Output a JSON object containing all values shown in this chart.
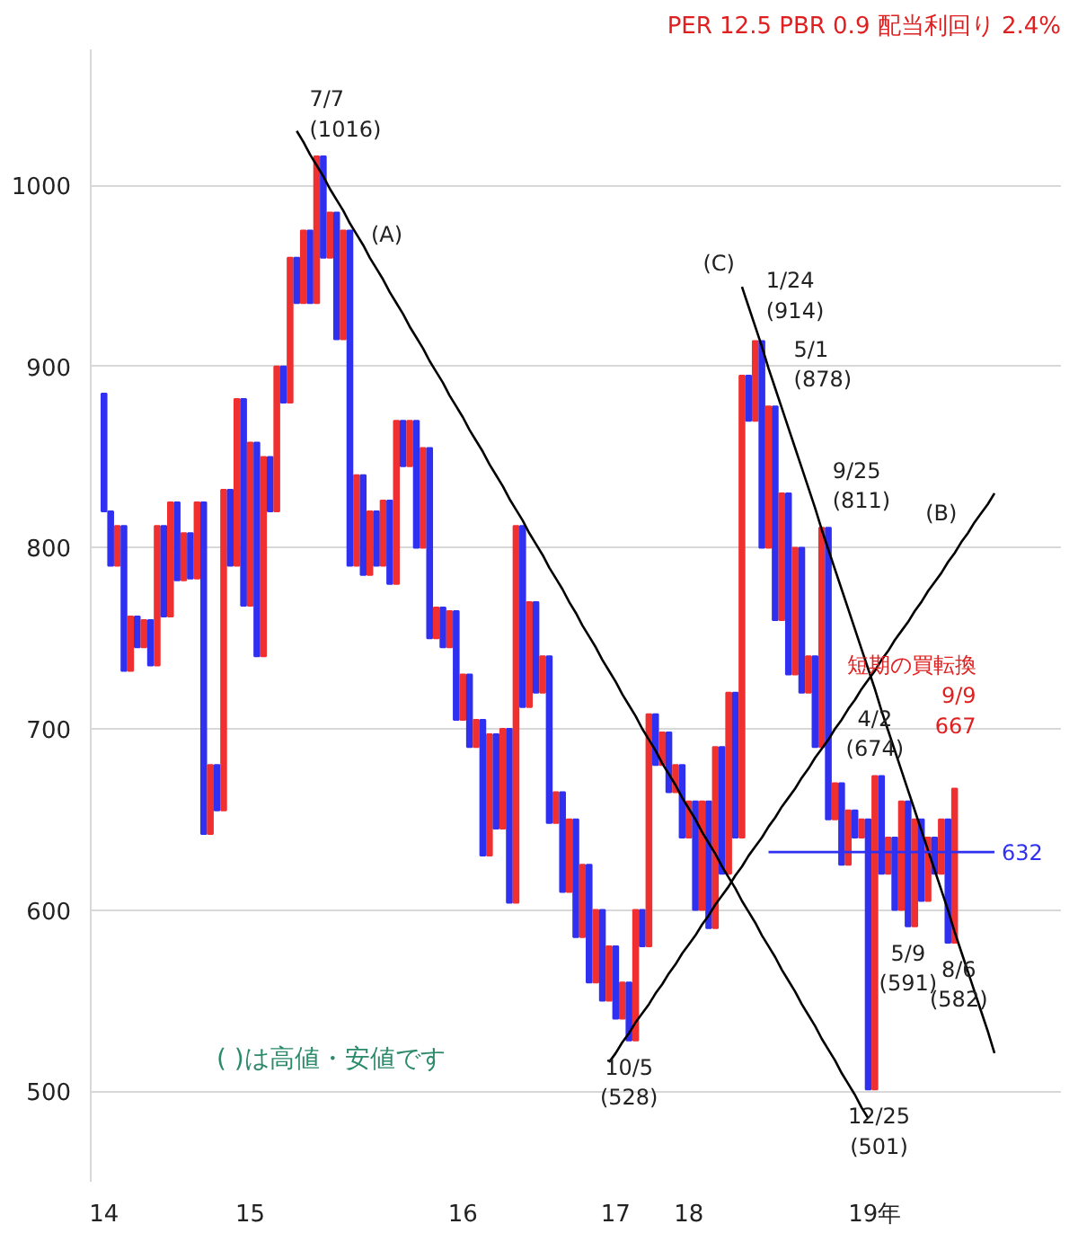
{
  "chart_data": {
    "type": "bar",
    "title": "PER 12.5 PBR 0.9 配当利回り 2.4%",
    "categories": [
      "14",
      null,
      null,
      null,
      null,
      null,
      null,
      null,
      null,
      null,
      null,
      null,
      null,
      null,
      null,
      null,
      null,
      null,
      null,
      null,
      null,
      null,
      "15",
      null,
      null,
      null,
      null,
      null,
      null,
      null,
      null,
      null,
      null,
      null,
      null,
      null,
      null,
      null,
      null,
      null,
      null,
      null,
      null,
      null,
      null,
      null,
      null,
      null,
      null,
      null,
      null,
      null,
      null,
      null,
      "16",
      null,
      null,
      null,
      null,
      null,
      null,
      null,
      null,
      null,
      null,
      null,
      null,
      null,
      null,
      null,
      null,
      null,
      null,
      null,
      null,
      null,
      null,
      "17",
      null,
      null,
      null,
      null,
      null,
      null,
      null,
      null,
      null,
      null,
      "18",
      null,
      null,
      null,
      null,
      null,
      null,
      null,
      null,
      null,
      null,
      null,
      null,
      null,
      null,
      null,
      null,
      null,
      null,
      null,
      null,
      null,
      null,
      null,
      null,
      null,
      null,
      null,
      "19年",
      null,
      null,
      null,
      null,
      null,
      null,
      null,
      null,
      null,
      null,
      null,
      null,
      null,
      null,
      null,
      null,
      null,
      null
    ],
    "base": [
      885,
      820,
      790,
      812,
      732,
      762,
      745,
      760,
      735,
      812,
      762,
      825,
      782,
      808,
      783,
      825,
      642,
      680,
      655,
      832,
      790,
      882,
      768,
      858,
      740,
      850,
      820,
      900,
      880,
      960,
      935,
      975,
      935,
      1016,
      960,
      985,
      915,
      975,
      790,
      840,
      785,
      820,
      790,
      826,
      780,
      870,
      845,
      870,
      800,
      855,
      750,
      767,
      745,
      765,
      705,
      730,
      690,
      705,
      630,
      697,
      645,
      700,
      604,
      812,
      712,
      770,
      720,
      740,
      648,
      665,
      610,
      650,
      585,
      625,
      560,
      600,
      550,
      580,
      540,
      560,
      528,
      600,
      580,
      708,
      680,
      698,
      665,
      680,
      640,
      660,
      600,
      660,
      590,
      690,
      620,
      720,
      640,
      895,
      870,
      914,
      800,
      878,
      760,
      830,
      730,
      800,
      720,
      740,
      690,
      811,
      650,
      670,
      625,
      655,
      640,
      650,
      501,
      674,
      620,
      640,
      600,
      660,
      591,
      650,
      605,
      640,
      620,
      650,
      582,
      null,
      null,
      null,
      null,
      null,
      null
    ],
    "values": [
      -65,
      -30,
      22,
      -80,
      30,
      -17,
      15,
      -25,
      77,
      -50,
      63,
      -43,
      26,
      -25,
      42,
      -183,
      38,
      -25,
      177,
      -42,
      92,
      -114,
      90,
      -118,
      110,
      -30,
      80,
      -20,
      80,
      -25,
      40,
      -40,
      81,
      -56,
      25,
      -70,
      60,
      -185,
      50,
      -55,
      35,
      -30,
      36,
      -46,
      90,
      -25,
      25,
      -70,
      55,
      -105,
      17,
      -22,
      20,
      -60,
      25,
      -40,
      15,
      -75,
      67,
      -52,
      55,
      -96,
      208,
      -100,
      58,
      -50,
      20,
      -92,
      17,
      -55,
      40,
      -65,
      40,
      -65,
      40,
      -50,
      30,
      -40,
      20,
      -32,
      72,
      -20,
      128,
      -28,
      18,
      -33,
      15,
      -40,
      20,
      -60,
      60,
      -70,
      100,
      -70,
      100,
      -80,
      255,
      -25,
      44,
      -114,
      78,
      -118,
      70,
      -100,
      70,
      -80,
      20,
      -50,
      121,
      -161,
      20,
      -45,
      30,
      -15,
      10,
      -149,
      173,
      -54,
      20,
      -40,
      60,
      -69,
      59,
      -45,
      35,
      -20,
      30,
      -68,
      85,
      null,
      null,
      null,
      null,
      null,
      null
    ],
    "colors": [
      "#3030f0",
      "#3030f0",
      "#f03030",
      "#3030f0",
      "#f03030",
      "#3030f0",
      "#f03030",
      "#3030f0",
      "#f03030",
      "#3030f0",
      "#f03030",
      "#3030f0",
      "#f03030",
      "#3030f0",
      "#f03030",
      "#3030f0",
      "#f03030",
      "#3030f0",
      "#f03030",
      "#3030f0",
      "#f03030",
      "#3030f0",
      "#f03030",
      "#3030f0",
      "#f03030",
      "#3030f0",
      "#f03030",
      "#3030f0",
      "#f03030",
      "#3030f0",
      "#f03030",
      "#3030f0",
      "#f03030",
      "#3030f0",
      "#f03030",
      "#3030f0",
      "#f03030",
      "#3030f0",
      "#f03030",
      "#3030f0",
      "#f03030",
      "#3030f0",
      "#f03030",
      "#3030f0",
      "#f03030",
      "#3030f0",
      "#f03030",
      "#3030f0",
      "#f03030",
      "#3030f0",
      "#f03030",
      "#3030f0",
      "#f03030",
      "#3030f0",
      "#f03030",
      "#3030f0",
      "#f03030",
      "#3030f0",
      "#f03030",
      "#3030f0",
      "#f03030",
      "#3030f0",
      "#f03030",
      "#3030f0",
      "#f03030",
      "#3030f0",
      "#f03030",
      "#3030f0",
      "#f03030",
      "#3030f0",
      "#f03030",
      "#3030f0",
      "#f03030",
      "#3030f0",
      "#f03030",
      "#3030f0",
      "#f03030",
      "#3030f0",
      "#f03030",
      "#3030f0",
      "#f03030",
      "#3030f0",
      "#f03030",
      "#3030f0",
      "#f03030",
      "#3030f0",
      "#f03030",
      "#3030f0",
      "#f03030",
      "#3030f0",
      "#f03030",
      "#3030f0",
      "#f03030",
      "#3030f0",
      "#f03030",
      "#3030f0",
      "#f03030",
      "#3030f0",
      "#f03030",
      "#3030f0",
      "#f03030",
      "#3030f0",
      "#f03030",
      "#3030f0",
      "#f03030",
      "#3030f0",
      "#f03030",
      "#3030f0",
      "#f03030",
      "#3030f0",
      "#f03030",
      "#3030f0",
      "#f03030",
      "#3030f0",
      "#f03030",
      "#3030f0",
      "#f03030",
      "#3030f0",
      "#f03030",
      "#3030f0",
      "#f03030",
      "#3030f0",
      "#f03030",
      "#3030f0",
      "#f03030",
      "#3030f0",
      "#f03030",
      "#3030f0",
      "#f03030",
      null,
      null,
      null,
      null,
      null,
      null
    ],
    "series": [
      {
        "type": "line",
        "color": "#000000",
        "values": [
          null,
          null,
          null,
          null,
          null,
          null,
          null,
          null,
          null,
          null,
          null,
          null,
          null,
          null,
          null,
          null,
          null,
          null,
          null,
          null,
          null,
          null,
          null,
          null,
          null,
          null,
          null,
          null,
          null,
          1030,
          1024,
          1017,
          1011,
          1005,
          998,
          992,
          986,
          979,
          973,
          967,
          960,
          954,
          948,
          941,
          935,
          929,
          922,
          916,
          910,
          903,
          897,
          891,
          884,
          878,
          872,
          865,
          859,
          853,
          846,
          840,
          834,
          827,
          821,
          815,
          808,
          802,
          796,
          789,
          783,
          777,
          770,
          764,
          757,
          751,
          745,
          738,
          732,
          726,
          719,
          713,
          707,
          700,
          694,
          688,
          681,
          675,
          669,
          662,
          656,
          650,
          643,
          637,
          631,
          624,
          618,
          612,
          605,
          599,
          593,
          586,
          580,
          574,
          567,
          561,
          555,
          548,
          542,
          536,
          529,
          523,
          517,
          510,
          504,
          498,
          491,
          485,
          null,
          null,
          null,
          null,
          null,
          null,
          null,
          null,
          null,
          null,
          null,
          null,
          null,
          null,
          null,
          null,
          null,
          null,
          null
        ]
      },
      {
        "type": "line",
        "color": "#000000",
        "values": [
          null,
          null,
          null,
          null,
          null,
          null,
          null,
          null,
          null,
          null,
          null,
          null,
          null,
          null,
          null,
          null,
          null,
          null,
          null,
          null,
          null,
          null,
          null,
          null,
          null,
          null,
          null,
          null,
          null,
          null,
          null,
          null,
          null,
          null,
          null,
          null,
          null,
          null,
          null,
          null,
          null,
          null,
          null,
          null,
          null,
          null,
          null,
          null,
          null,
          null,
          null,
          null,
          null,
          null,
          null,
          null,
          null,
          null,
          null,
          null,
          null,
          null,
          null,
          null,
          null,
          null,
          null,
          null,
          null,
          null,
          null,
          null,
          null,
          null,
          null,
          null,
          516,
          521,
          527,
          532,
          538,
          543,
          548,
          554,
          559,
          565,
          570,
          576,
          581,
          586,
          592,
          597,
          603,
          608,
          613,
          619,
          624,
          630,
          635,
          640,
          646,
          651,
          657,
          662,
          667,
          673,
          678,
          684,
          689,
          694,
          700,
          705,
          711,
          716,
          722,
          727,
          732,
          738,
          743,
          749,
          754,
          759,
          765,
          770,
          776,
          781,
          786,
          792,
          797,
          803,
          808,
          814,
          819,
          824,
          830
        ]
      },
      {
        "type": "line",
        "color": "#000000",
        "values": [
          null,
          null,
          null,
          null,
          null,
          null,
          null,
          null,
          null,
          null,
          null,
          null,
          null,
          null,
          null,
          null,
          null,
          null,
          null,
          null,
          null,
          null,
          null,
          null,
          null,
          null,
          null,
          null,
          null,
          null,
          null,
          null,
          null,
          null,
          null,
          null,
          null,
          null,
          null,
          null,
          null,
          null,
          null,
          null,
          null,
          null,
          null,
          null,
          null,
          null,
          null,
          null,
          null,
          null,
          null,
          null,
          null,
          null,
          null,
          null,
          null,
          null,
          null,
          null,
          null,
          null,
          null,
          null,
          null,
          null,
          null,
          null,
          null,
          null,
          null,
          null,
          null,
          null,
          null,
          null,
          null,
          null,
          null,
          null,
          null,
          null,
          null,
          null,
          null,
          null,
          null,
          null,
          null,
          null,
          null,
          null,
          944,
          933,
          922,
          911,
          899,
          888,
          877,
          866,
          855,
          844,
          833,
          822,
          810,
          799,
          788,
          777,
          766,
          755,
          744,
          733,
          722,
          710,
          699,
          688,
          677,
          666,
          655,
          644,
          633,
          622,
          611,
          600,
          588,
          577,
          566,
          555,
          544,
          533,
          521
        ]
      },
      {
        "type": "line",
        "color": "#3030f0",
        "values": [
          null,
          null,
          null,
          null,
          null,
          null,
          null,
          null,
          null,
          null,
          null,
          null,
          null,
          null,
          null,
          null,
          null,
          null,
          null,
          null,
          null,
          null,
          null,
          null,
          null,
          null,
          null,
          null,
          null,
          null,
          null,
          null,
          null,
          null,
          null,
          null,
          null,
          null,
          null,
          null,
          null,
          null,
          null,
          null,
          null,
          null,
          null,
          null,
          null,
          null,
          null,
          null,
          null,
          null,
          null,
          null,
          null,
          null,
          null,
          null,
          null,
          null,
          null,
          null,
          null,
          null,
          null,
          null,
          null,
          null,
          null,
          null,
          null,
          null,
          null,
          null,
          null,
          null,
          null,
          null,
          null,
          null,
          null,
          null,
          null,
          null,
          null,
          null,
          null,
          null,
          null,
          null,
          null,
          null,
          null,
          null,
          null,
          null,
          null,
          null,
          632,
          632,
          632,
          632,
          632,
          632,
          632,
          632,
          632,
          632,
          632,
          632,
          632,
          632,
          632,
          632,
          632,
          632,
          632,
          632,
          632,
          632,
          632,
          632,
          632,
          632,
          632,
          632,
          632,
          632,
          632,
          632,
          632,
          632,
          632
        ]
      }
    ],
    "ylim": [
      450,
      1075
    ],
    "yticks": [
      500,
      600,
      700,
      800,
      900,
      1000
    ],
    "grid": "y",
    "annotations": [
      "7/7\n(1016)",
      "(A)",
      "(B)",
      "(C)",
      "1/24\n(914)",
      "5/1\n(878)",
      "9/25\n(811)",
      "4/2\n(674)",
      "短期の買転換\n9/9\n667",
      "632",
      "10/5\n(528)",
      "12/25\n(501)",
      "5/9\n(591)",
      "8/6\n(582)",
      "( )は高値・安値です"
    ]
  }
}
